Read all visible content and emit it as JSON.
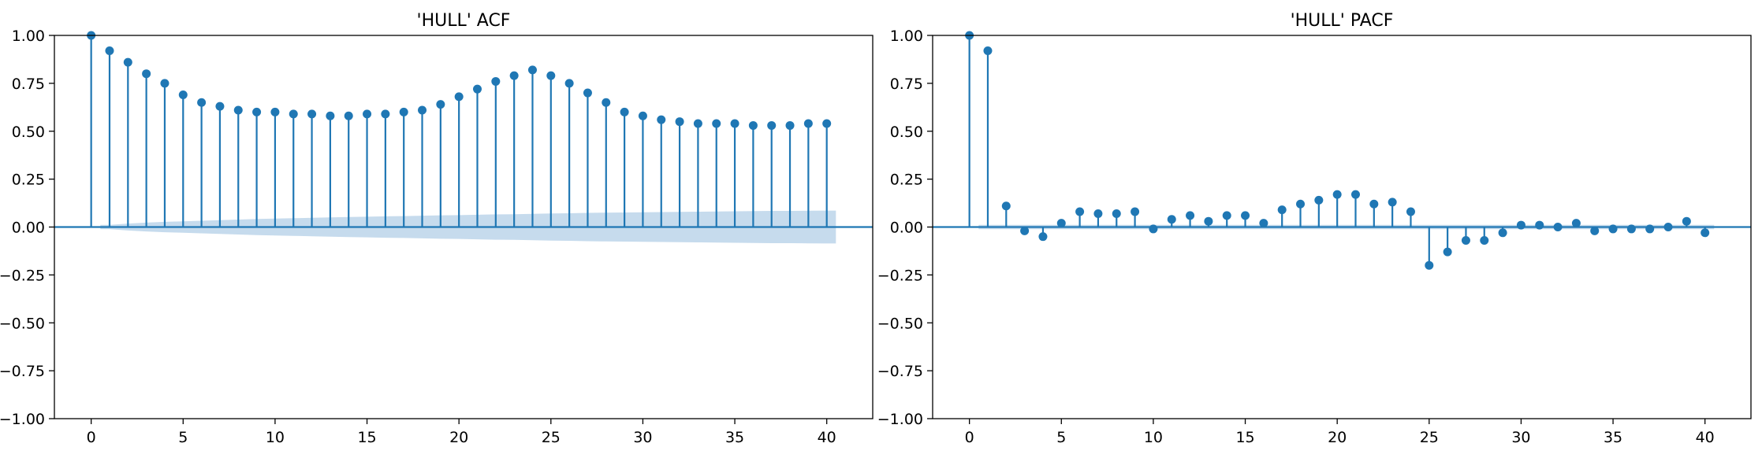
{
  "chart_data": [
    {
      "type": "stem",
      "title": "'HULL' ACF",
      "xlabel": "",
      "ylabel": "",
      "xlim": [
        -2,
        42.5
      ],
      "ylim": [
        -1.0,
        1.0
      ],
      "x_ticks": [
        "0",
        "5",
        "10",
        "15",
        "20",
        "25",
        "30",
        "35",
        "40"
      ],
      "y_ticks": [
        "−1.00",
        "−0.75",
        "−0.50",
        "−0.25",
        "0.00",
        "0.25",
        "0.50",
        "0.75",
        "1.00"
      ],
      "grid": false,
      "color": "#1f77b4",
      "band_color": "#c6dbed",
      "x": [
        0,
        1,
        2,
        3,
        4,
        5,
        6,
        7,
        8,
        9,
        10,
        11,
        12,
        13,
        14,
        15,
        16,
        17,
        18,
        19,
        20,
        21,
        22,
        23,
        24,
        25,
        26,
        27,
        28,
        29,
        30,
        31,
        32,
        33,
        34,
        35,
        36,
        37,
        38,
        39,
        40
      ],
      "values": [
        1.0,
        0.92,
        0.86,
        0.8,
        0.75,
        0.69,
        0.65,
        0.63,
        0.61,
        0.6,
        0.6,
        0.59,
        0.59,
        0.58,
        0.58,
        0.59,
        0.59,
        0.6,
        0.61,
        0.64,
        0.68,
        0.72,
        0.76,
        0.79,
        0.82,
        0.79,
        0.75,
        0.7,
        0.65,
        0.6,
        0.58,
        0.56,
        0.55,
        0.54,
        0.54,
        0.54,
        0.53,
        0.53,
        0.53,
        0.54,
        0.54
      ],
      "confidence_band": [
        0.0,
        0.011,
        0.018,
        0.023,
        0.027,
        0.03,
        0.033,
        0.036,
        0.039,
        0.042,
        0.044,
        0.046,
        0.048,
        0.05,
        0.052,
        0.054,
        0.056,
        0.057,
        0.059,
        0.061,
        0.062,
        0.064,
        0.066,
        0.067,
        0.069,
        0.071,
        0.072,
        0.074,
        0.075,
        0.076,
        0.077,
        0.078,
        0.079,
        0.08,
        0.081,
        0.082,
        0.083,
        0.084,
        0.084,
        0.085,
        0.086
      ]
    },
    {
      "type": "stem",
      "title": "'HULL' PACF",
      "xlabel": "",
      "ylabel": "",
      "xlim": [
        -2,
        42.5
      ],
      "ylim": [
        -1.0,
        1.0
      ],
      "x_ticks": [
        "0",
        "5",
        "10",
        "15",
        "20",
        "25",
        "30",
        "35",
        "40"
      ],
      "y_ticks": [
        "−1.00",
        "−0.75",
        "−0.50",
        "−0.25",
        "0.00",
        "0.25",
        "0.50",
        "0.75",
        "1.00"
      ],
      "grid": false,
      "color": "#1f77b4",
      "band_color": "#c6dbed",
      "x": [
        0,
        1,
        2,
        3,
        4,
        5,
        6,
        7,
        8,
        9,
        10,
        11,
        12,
        13,
        14,
        15,
        16,
        17,
        18,
        19,
        20,
        21,
        22,
        23,
        24,
        25,
        26,
        27,
        28,
        29,
        30,
        31,
        32,
        33,
        34,
        35,
        36,
        37,
        38,
        39,
        40
      ],
      "values": [
        1.0,
        0.92,
        0.11,
        -0.02,
        -0.05,
        0.02,
        0.08,
        0.07,
        0.07,
        0.08,
        -0.01,
        0.04,
        0.06,
        0.03,
        0.06,
        0.06,
        0.02,
        0.09,
        0.12,
        0.14,
        0.17,
        0.17,
        0.12,
        0.13,
        0.08,
        -0.2,
        -0.13,
        -0.07,
        -0.07,
        -0.03,
        0.01,
        0.01,
        0.0,
        0.02,
        -0.02,
        -0.01,
        -0.01,
        -0.01,
        0.0,
        0.03,
        -0.03
      ],
      "confidence_band": [
        0.0,
        0.011,
        0.011,
        0.011,
        0.011,
        0.011,
        0.011,
        0.011,
        0.011,
        0.011,
        0.011,
        0.011,
        0.011,
        0.011,
        0.011,
        0.011,
        0.011,
        0.011,
        0.011,
        0.011,
        0.011,
        0.011,
        0.011,
        0.011,
        0.011,
        0.011,
        0.011,
        0.011,
        0.011,
        0.011,
        0.011,
        0.011,
        0.011,
        0.011,
        0.011,
        0.011,
        0.011,
        0.011,
        0.011,
        0.011,
        0.011
      ]
    }
  ]
}
